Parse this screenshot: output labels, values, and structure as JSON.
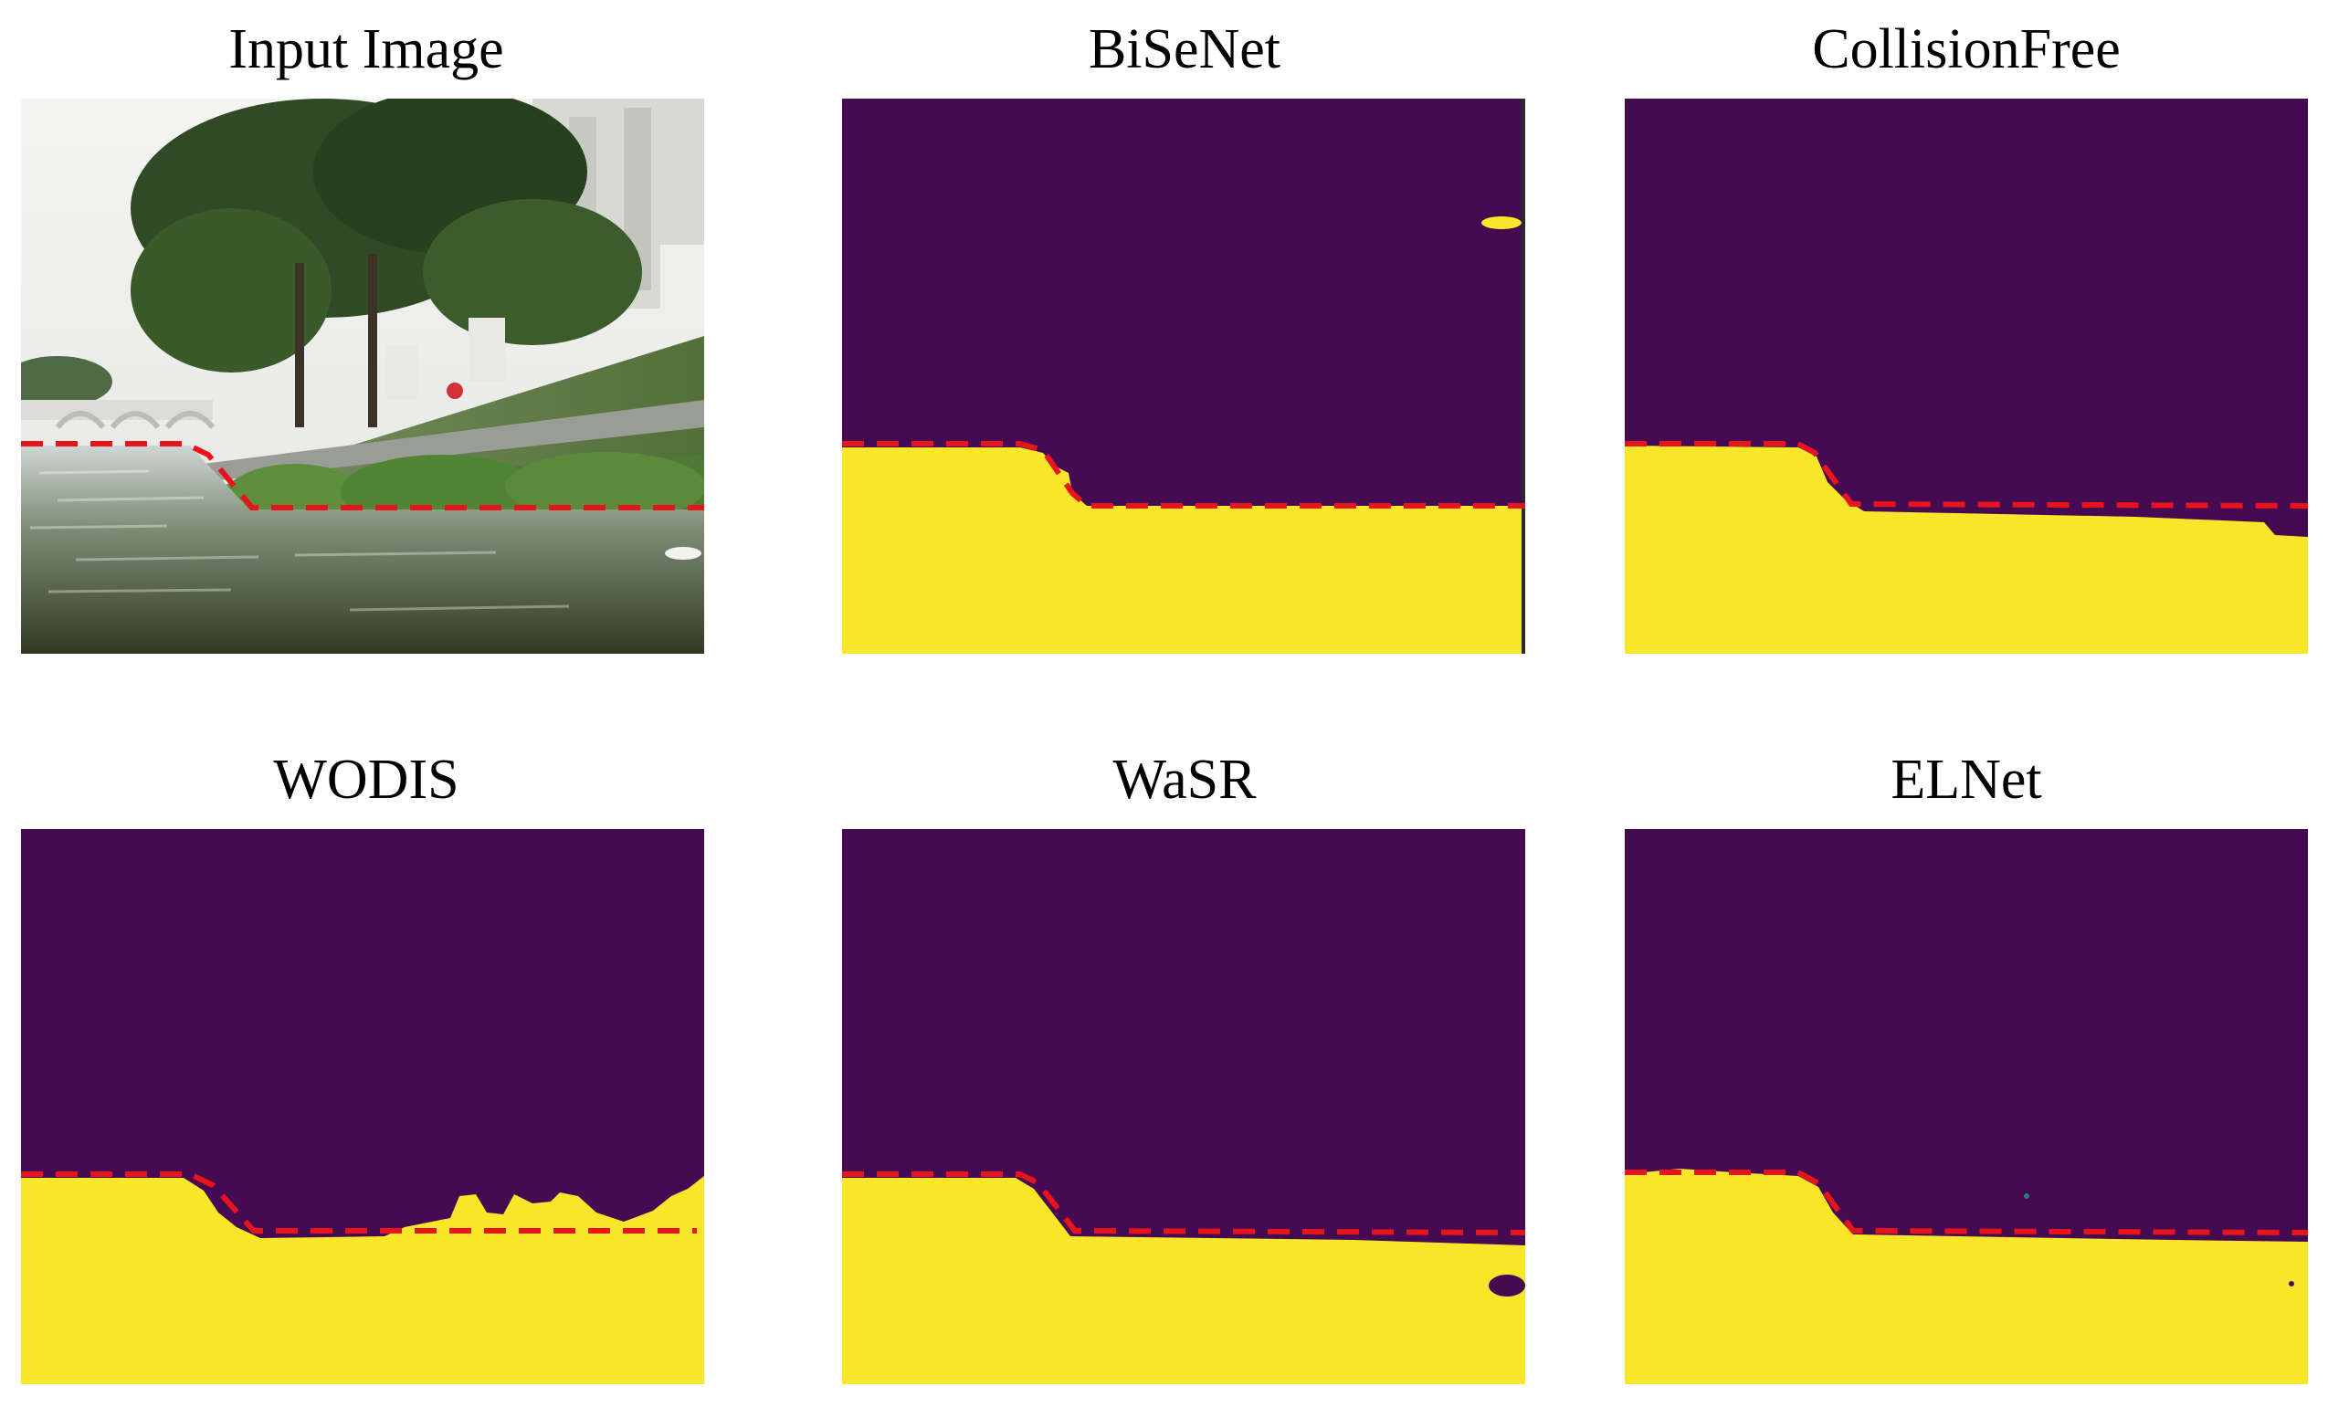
{
  "panels": [
    {
      "title": "Input Image",
      "kind": "photo"
    },
    {
      "title": "BiSeNet",
      "kind": "mask"
    },
    {
      "title": "CollisionFree",
      "kind": "mask"
    },
    {
      "title": "WODIS",
      "kind": "mask"
    },
    {
      "title": "WaSR",
      "kind": "mask"
    },
    {
      "title": "ELNet",
      "kind": "mask"
    }
  ],
  "colors": {
    "obstacle": "#440a52",
    "water": "#f8e62a",
    "boundary": "#e8141c"
  }
}
